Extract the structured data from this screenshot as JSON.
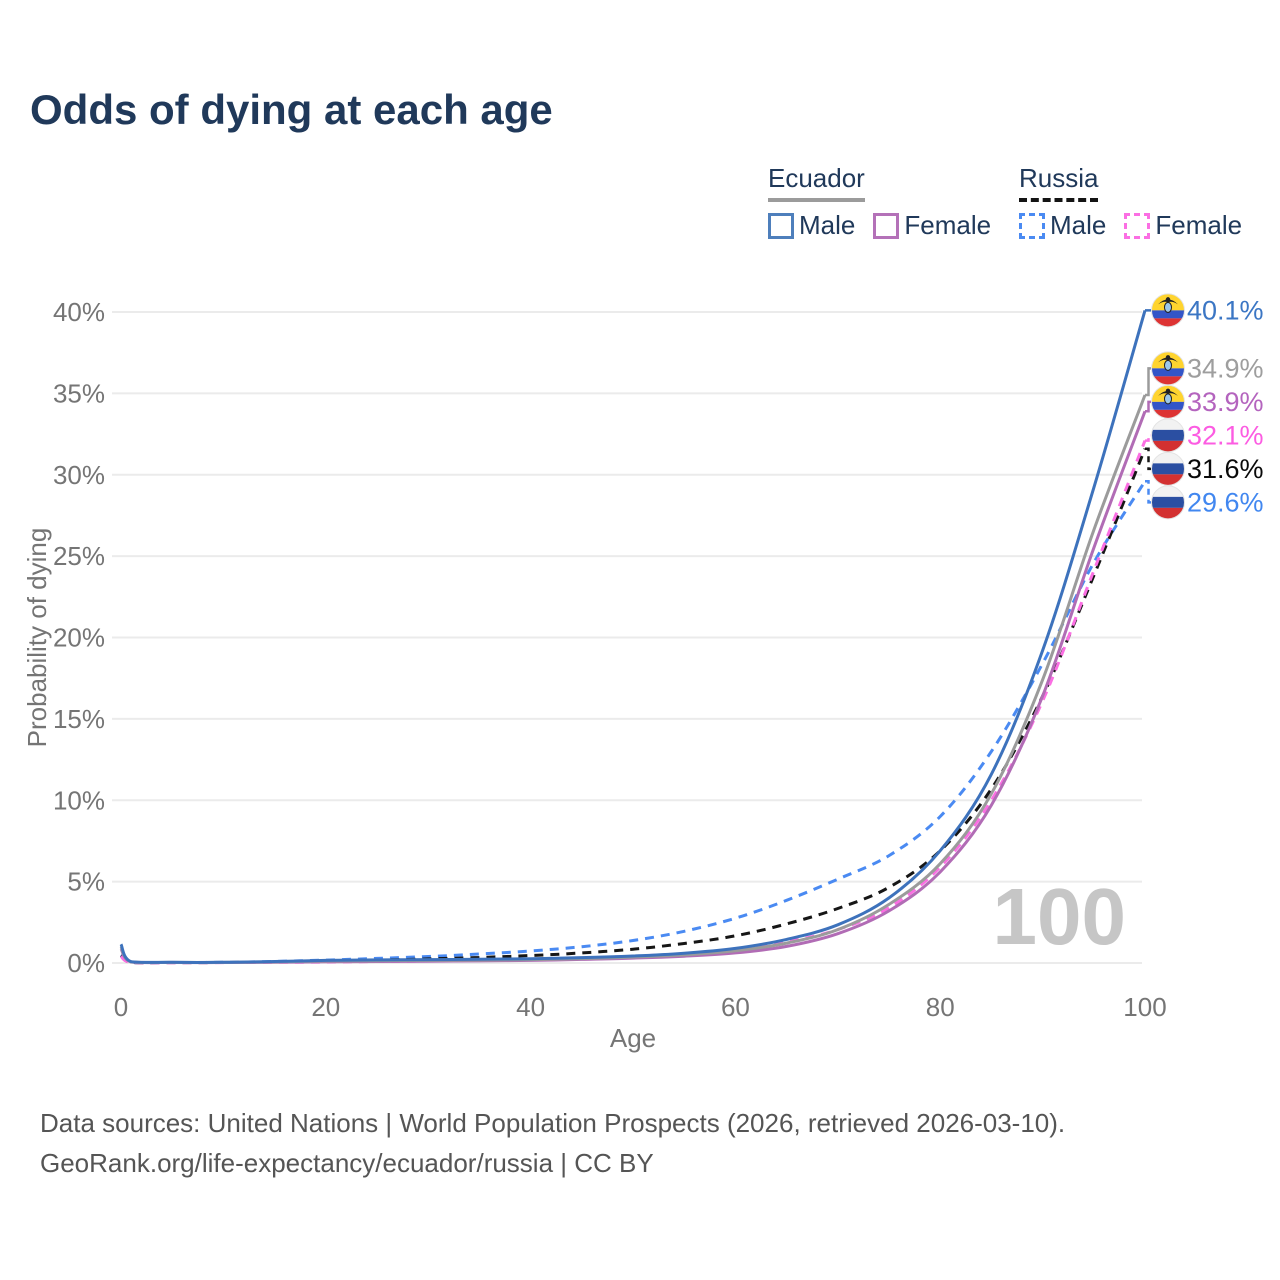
{
  "title": "Odds of dying at each age",
  "legend": {
    "ecuador": {
      "label": "Ecuador",
      "male": "Male",
      "female": "Female",
      "line_color": "#9b9b9b",
      "male_color": "#4e7fbc",
      "female_color": "#b471b8",
      "line_style": "solid"
    },
    "russia": {
      "label": "Russia",
      "male": "Male",
      "female": "Female",
      "line_color": "#141414",
      "male_color": "#4a8af2",
      "female_color": "#fb6fe3",
      "line_style": "dashed"
    }
  },
  "footer": {
    "line1": "Data sources: United Nations | World Population Prospects (2026, retrieved 2026-03-10).",
    "line2": "GeoRank.org/life-expectancy/ecuador/russia | CC BY"
  },
  "chart_data": {
    "type": "line",
    "title": "Odds of dying at each age",
    "xlabel": "Age",
    "ylabel": "Probability of dying",
    "xlim": [
      0,
      100
    ],
    "ylim": [
      0,
      40
    ],
    "xticks": [
      0,
      20,
      40,
      60,
      80,
      100
    ],
    "yticks": [
      0,
      5,
      10,
      15,
      20,
      25,
      30,
      35,
      40
    ],
    "ytick_suffix": "%",
    "grid": "horizontal",
    "gridline_color": "#ebebeb",
    "axis_text_color": "#757575",
    "watermark": "100",
    "watermark_color": "#c6c6c6",
    "ages": [
      0,
      1,
      5,
      10,
      15,
      20,
      25,
      30,
      35,
      40,
      45,
      50,
      55,
      60,
      65,
      70,
      75,
      80,
      85,
      90,
      95,
      100
    ],
    "series": [
      {
        "name": "Ecuador Male",
        "country": "Ecuador",
        "sex": "Male",
        "color": "#3d72bc",
        "dash": null,
        "flag": "ecuador",
        "end_label": "40.1%",
        "end_value": 40.1,
        "label_color": "#3b76c4",
        "values": [
          1.15,
          0.08,
          0.04,
          0.04,
          0.09,
          0.16,
          0.19,
          0.21,
          0.23,
          0.26,
          0.33,
          0.43,
          0.6,
          0.9,
          1.45,
          2.35,
          4.0,
          6.9,
          11.6,
          19.2,
          29.2,
          40.1
        ]
      },
      {
        "name": "Ecuador Both sexes",
        "country": "Ecuador",
        "sex": "Both",
        "color": "#9b9b9b",
        "dash": null,
        "flag": "ecuador",
        "end_label": "34.9%",
        "end_value": 34.9,
        "label_color": "#9e9e9e",
        "values": [
          1.0,
          0.07,
          0.035,
          0.035,
          0.07,
          0.12,
          0.14,
          0.16,
          0.18,
          0.21,
          0.27,
          0.36,
          0.5,
          0.75,
          1.22,
          2.05,
          3.6,
          6.1,
          10.4,
          17.4,
          26.6,
          34.9
        ]
      },
      {
        "name": "Ecuador Female",
        "country": "Ecuador",
        "sex": "Female",
        "color": "#b16cb5",
        "dash": null,
        "flag": "ecuador",
        "end_label": "33.9%",
        "end_value": 33.9,
        "label_color": "#b464be",
        "values": [
          0.88,
          0.06,
          0.03,
          0.03,
          0.05,
          0.08,
          0.09,
          0.11,
          0.13,
          0.16,
          0.22,
          0.3,
          0.42,
          0.62,
          1.02,
          1.8,
          3.2,
          5.6,
          9.7,
          16.4,
          25.5,
          33.9
        ]
      },
      {
        "name": "Russia Female",
        "country": "Russia",
        "sex": "Female",
        "color": "#fb6fe3",
        "dash": [
          9,
          7
        ],
        "flag": "russia",
        "end_label": "32.1%",
        "end_value": 32.1,
        "label_color": "#fc5ce2",
        "values": [
          0.4,
          0.03,
          0.02,
          0.025,
          0.04,
          0.06,
          0.09,
          0.12,
          0.16,
          0.22,
          0.3,
          0.42,
          0.58,
          0.85,
          1.3,
          2.05,
          3.4,
          5.9,
          10.0,
          16.1,
          24.1,
          32.1
        ]
      },
      {
        "name": "Russia Both sexes",
        "country": "Russia",
        "sex": "Both",
        "color": "#161616",
        "dash": [
          9,
          7
        ],
        "flag": "russia",
        "end_label": "31.6%",
        "end_value": 31.6,
        "label_color": "#0a0a0a",
        "values": [
          0.45,
          0.035,
          0.025,
          0.03,
          0.07,
          0.12,
          0.18,
          0.25,
          0.34,
          0.46,
          0.62,
          0.85,
          1.2,
          1.67,
          2.4,
          3.35,
          4.65,
          6.9,
          10.7,
          16.4,
          23.8,
          31.6
        ]
      },
      {
        "name": "Russia Male",
        "country": "Russia",
        "sex": "Male",
        "color": "#4a8af2",
        "dash": [
          9,
          7
        ],
        "flag": "russia",
        "end_label": "29.6%",
        "end_value": 29.6,
        "label_color": "#4187f0",
        "values": [
          0.5,
          0.04,
          0.03,
          0.04,
          0.1,
          0.18,
          0.28,
          0.4,
          0.55,
          0.74,
          1.0,
          1.38,
          1.95,
          2.75,
          3.85,
          5.15,
          6.6,
          9.0,
          13.0,
          18.4,
          24.6,
          29.6
        ]
      }
    ],
    "flag_colors": {
      "ecuador": {
        "top": "#ffd42e",
        "mid": "#3355c8",
        "bottom": "#dd3333",
        "emblem": "#222222",
        "emblem_oval": "#9cc7ea"
      },
      "russia": {
        "top": "#f2f2f2",
        "mid": "#2b4fa2",
        "bottom": "#d33131"
      }
    }
  }
}
